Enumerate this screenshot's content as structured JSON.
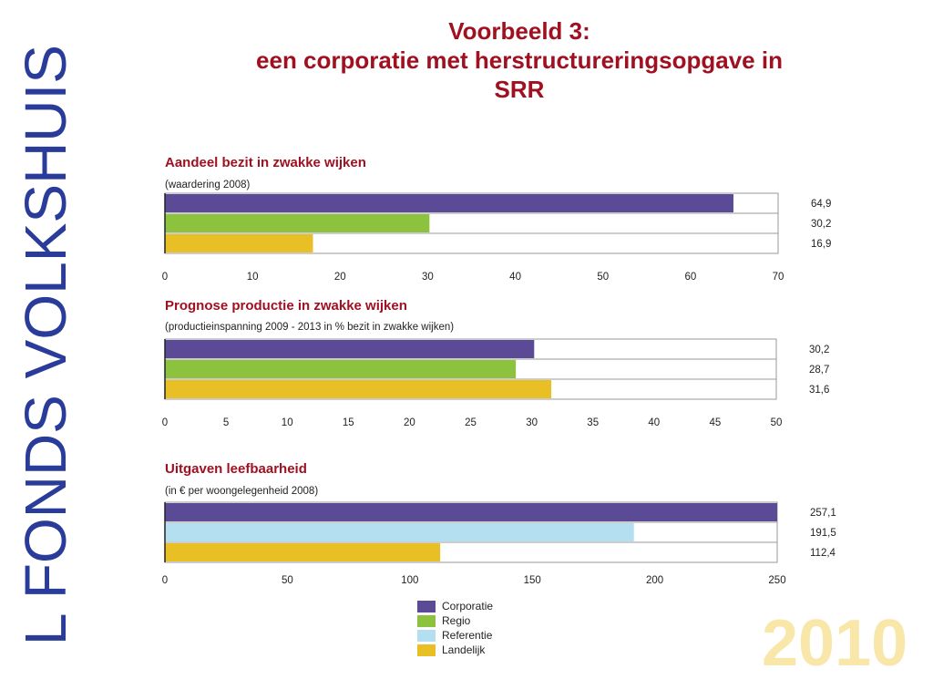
{
  "side_text": "L FONDS VOLKSHUIS",
  "slide_title": {
    "line1": "Voorbeeld 3:",
    "line2": "een corporatie met herstructureringsopgave in",
    "line3": "SRR"
  },
  "year": "2010",
  "colors": {
    "corporatie": "#5b4b96",
    "regio": "#8dc23e",
    "referentie": "#b4dff0",
    "landelijk": "#e8bf24",
    "title": "#a01020"
  },
  "legend": [
    {
      "label": "Corporatie",
      "key": "corporatie"
    },
    {
      "label": "Regio",
      "key": "regio"
    },
    {
      "label": "Referentie",
      "key": "referentie"
    },
    {
      "label": "Landelijk",
      "key": "landelijk"
    }
  ],
  "chart_data": [
    {
      "type": "bar",
      "title": "Aandeel bezit in zwakke wijken",
      "subtitle": "(waardering 2008)",
      "series": [
        {
          "name": "Corporatie",
          "color_key": "corporatie",
          "value": 64.9,
          "label": "64,9"
        },
        {
          "name": "Regio",
          "color_key": "regio",
          "value": 30.2,
          "label": "30,2"
        },
        {
          "name": "Landelijk",
          "color_key": "landelijk",
          "value": 16.9,
          "label": "16,9"
        }
      ],
      "xlim": [
        0,
        70
      ],
      "ticks": [
        0,
        10,
        20,
        30,
        40,
        50,
        60,
        70
      ]
    },
    {
      "type": "bar",
      "title": "Prognose productie in zwakke wijken",
      "subtitle": "(productieinspanning 2009 - 2013 in % bezit in zwakke wijken)",
      "series": [
        {
          "name": "Corporatie",
          "color_key": "corporatie",
          "value": 30.2,
          "label": "30,2"
        },
        {
          "name": "Regio",
          "color_key": "regio",
          "value": 28.7,
          "label": "28,7"
        },
        {
          "name": "Landelijk",
          "color_key": "landelijk",
          "value": 31.6,
          "label": "31,6"
        }
      ],
      "xlim": [
        0,
        50
      ],
      "ticks": [
        0,
        5,
        10,
        15,
        20,
        25,
        30,
        35,
        40,
        45,
        50
      ]
    },
    {
      "type": "bar",
      "title": "Uitgaven leefbaarheid",
      "subtitle": "(in € per woongelegenheid 2008)",
      "series": [
        {
          "name": "Corporatie",
          "color_key": "corporatie",
          "value": 257.1,
          "label": "257,1"
        },
        {
          "name": "Referentie",
          "color_key": "referentie",
          "value": 191.5,
          "label": "191,5"
        },
        {
          "name": "Landelijk",
          "color_key": "landelijk",
          "value": 112.4,
          "label": "112,4"
        }
      ],
      "xlim": [
        0,
        250
      ],
      "ticks": [
        0,
        50,
        100,
        150,
        200,
        250
      ]
    }
  ]
}
